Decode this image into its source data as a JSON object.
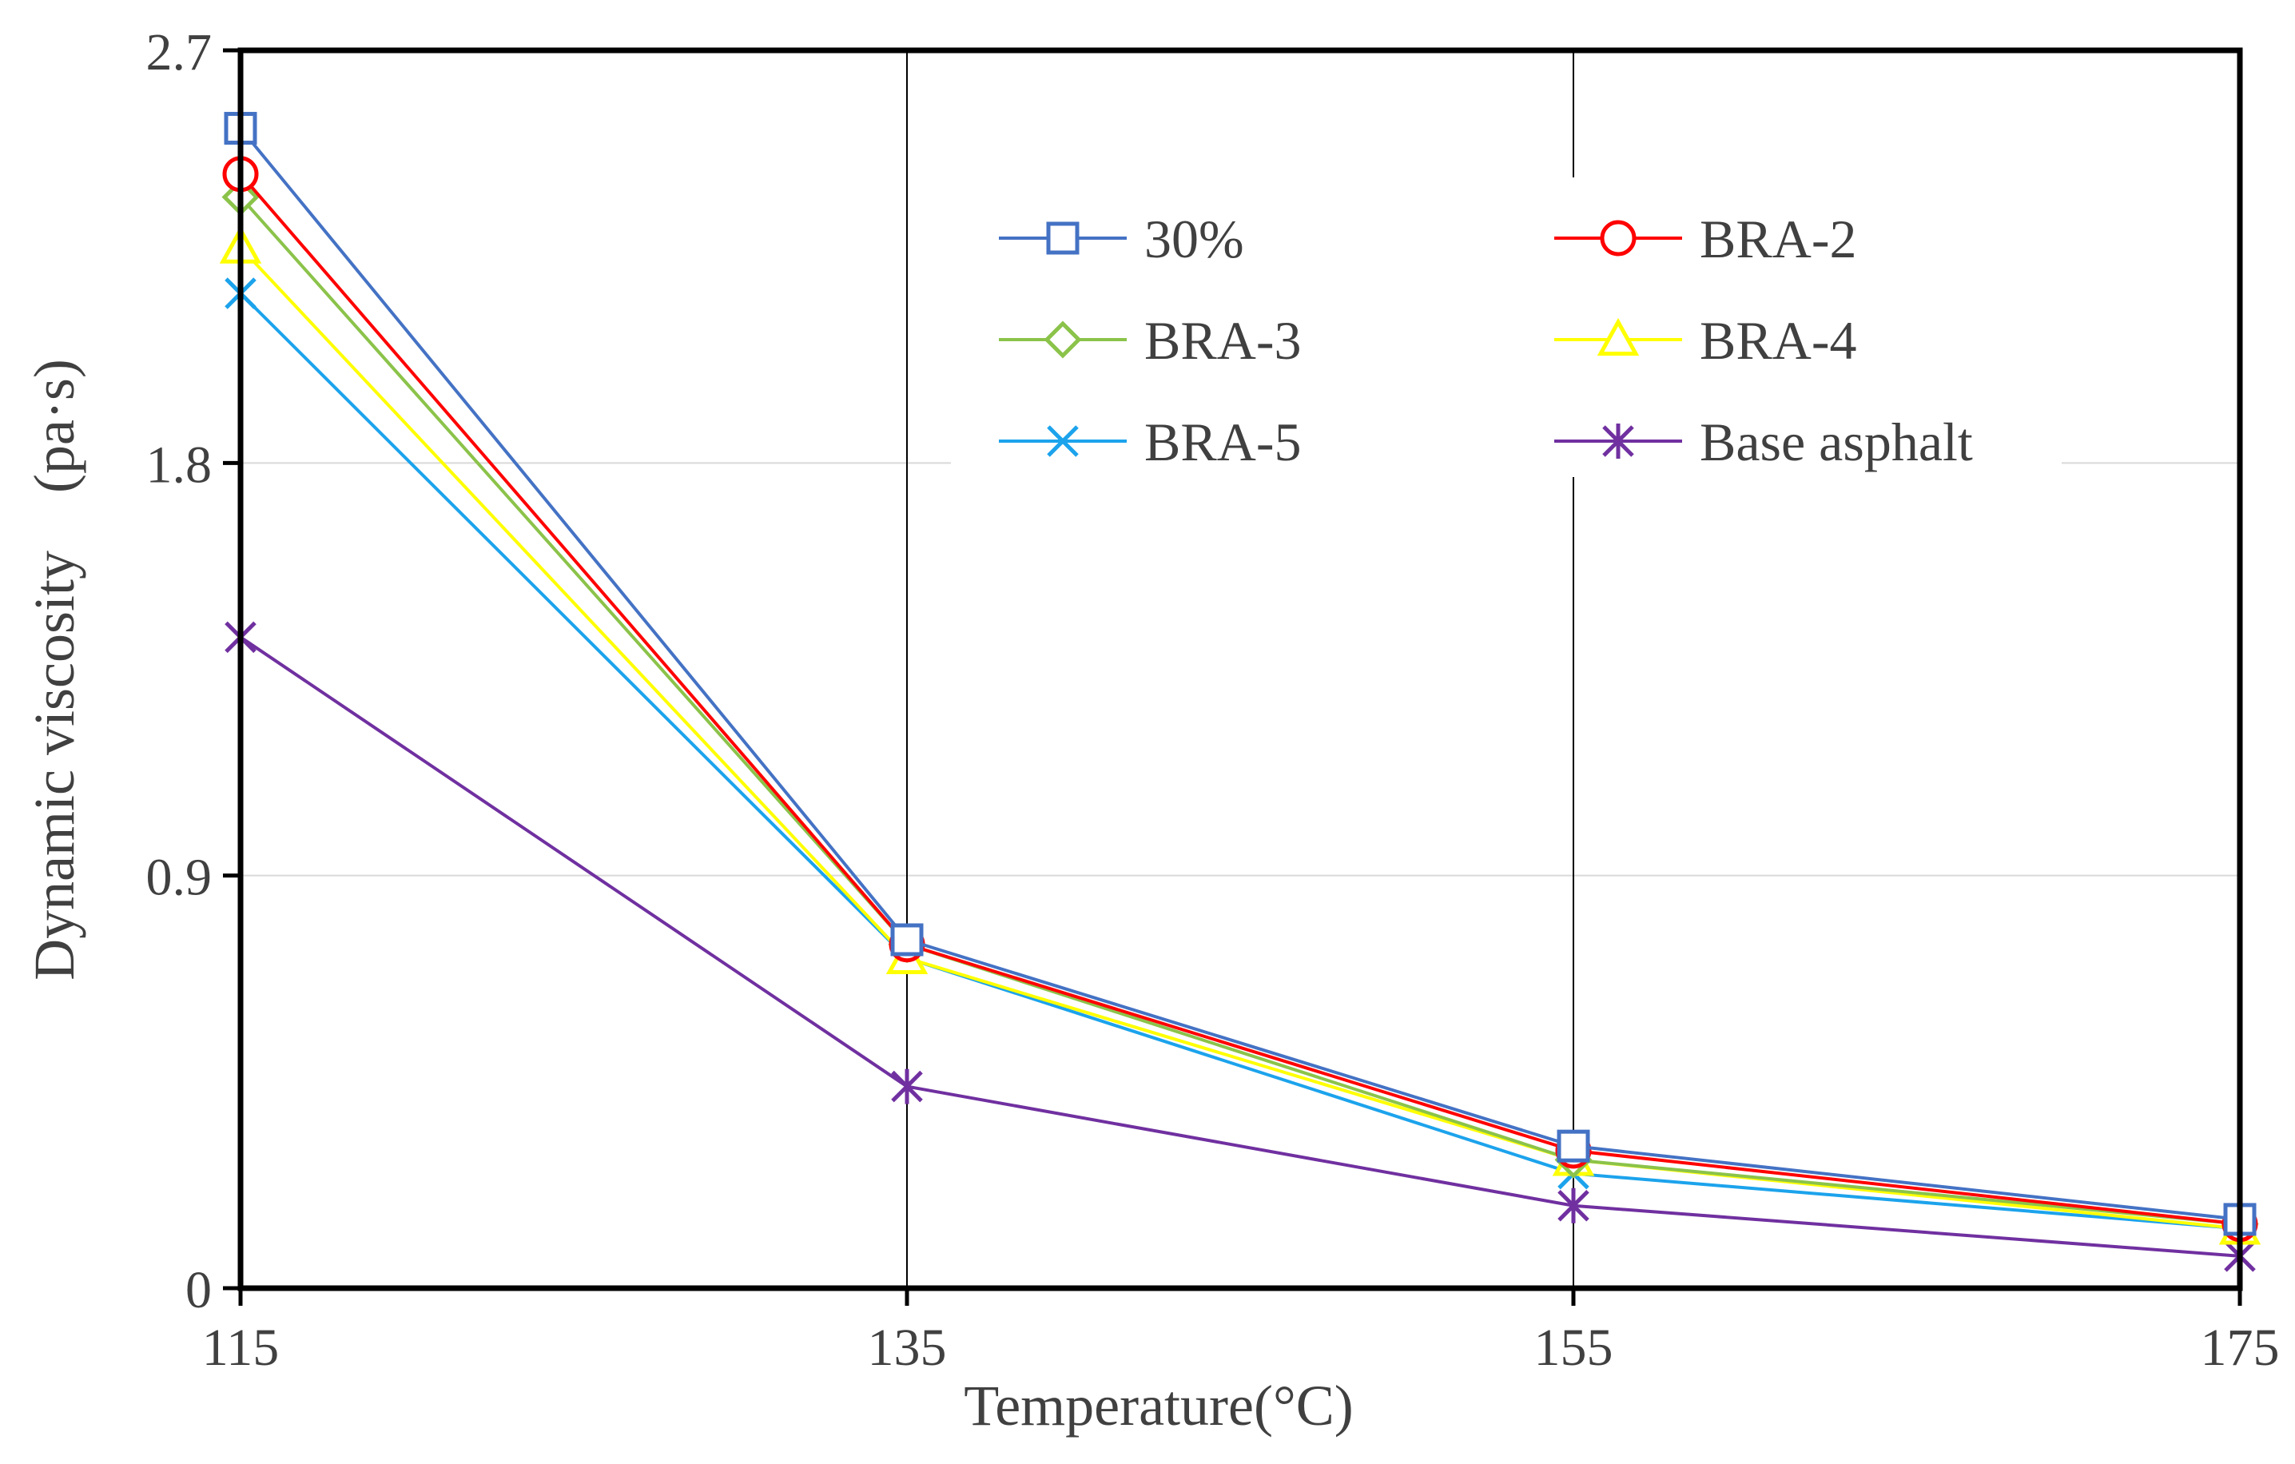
{
  "chart_data": {
    "type": "line",
    "title": "",
    "xlabel": "Temperature(°C)",
    "ylabel": "Dynamic viscosity　(pa·s)",
    "x": [
      115,
      135,
      155,
      175
    ],
    "x_tick_labels": [
      "115",
      "135",
      "155",
      "175"
    ],
    "y_ticks": [
      0,
      0.9,
      1.8,
      2.7
    ],
    "y_tick_labels": [
      "0",
      "0.9",
      "1.8",
      "2.7"
    ],
    "xlim": [
      115,
      175
    ],
    "ylim": [
      0,
      2.7
    ],
    "grid": "horizontal light lines at y ticks; vertical lines at x ticks",
    "legend_position": "upper-right, two columns",
    "series": [
      {
        "name": "30%",
        "color": "#4472C4",
        "marker": "square",
        "values": [
          2.53,
          0.76,
          0.31,
          0.15
        ]
      },
      {
        "name": "BRA-2",
        "color": "#FF0000",
        "marker": "circle",
        "values": [
          2.43,
          0.75,
          0.3,
          0.14
        ]
      },
      {
        "name": "BRA-3",
        "color": "#8BC34A",
        "marker": "diamond",
        "values": [
          2.38,
          0.75,
          0.28,
          0.14
        ]
      },
      {
        "name": "BRA-4",
        "color": "#FFFF00",
        "marker": "triangle",
        "values": [
          2.27,
          0.72,
          0.28,
          0.13
        ]
      },
      {
        "name": "BRA-5",
        "color": "#1CA3EC",
        "marker": "x",
        "values": [
          2.17,
          0.72,
          0.25,
          0.13
        ]
      },
      {
        "name": "Base asphalt",
        "color": "#7030A0",
        "marker": "star",
        "values": [
          1.42,
          0.44,
          0.18,
          0.07
        ]
      }
    ]
  }
}
